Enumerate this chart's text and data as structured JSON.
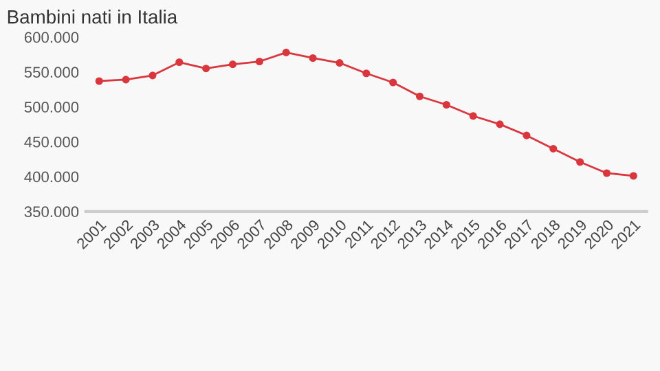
{
  "chart_data": {
    "type": "line",
    "title": "Bambini nati in Italia",
    "categories": [
      "2001",
      "2002",
      "2003",
      "2004",
      "2005",
      "2006",
      "2007",
      "2008",
      "2009",
      "2010",
      "2011",
      "2012",
      "2013",
      "2014",
      "2015",
      "2016",
      "2017",
      "2018",
      "2019",
      "2020",
      "2021"
    ],
    "series": [
      {
        "color": "#d9363e",
        "values": [
          537000,
          539000,
          545000,
          564000,
          555000,
          561000,
          565000,
          578000,
          570000,
          563000,
          548000,
          535000,
          515000,
          503000,
          487000,
          475000,
          459000,
          440000,
          421000,
          405000,
          401000
        ]
      }
    ],
    "ylim": [
      350000,
      600000
    ],
    "yticks": [
      {
        "value": 350000,
        "label": "350.000"
      },
      {
        "value": 400000,
        "label": "400.000"
      },
      {
        "value": 450000,
        "label": "450.000"
      },
      {
        "value": 500000,
        "label": "500.000"
      },
      {
        "value": 550000,
        "label": "550.000"
      },
      {
        "value": 600000,
        "label": "600.000"
      }
    ],
    "grid": false,
    "legend": false,
    "marker": "circle",
    "line_style": "solid"
  }
}
